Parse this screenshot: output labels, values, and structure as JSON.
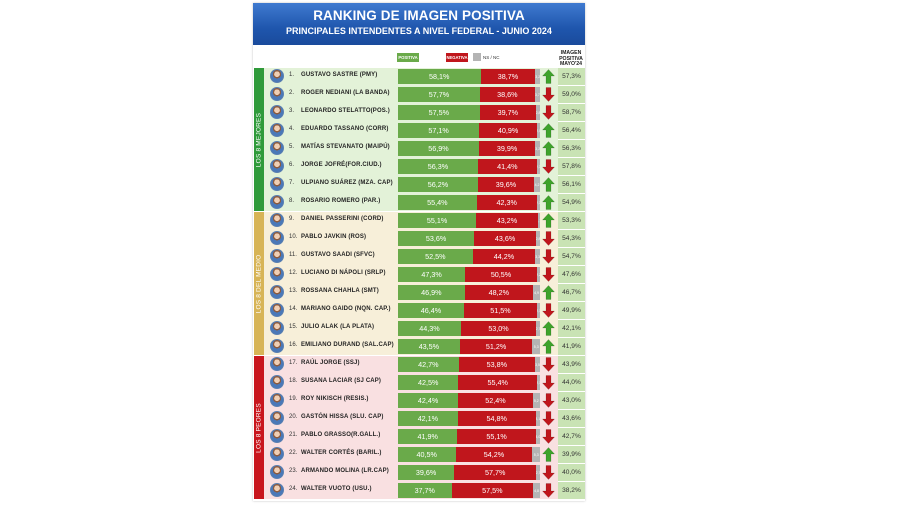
{
  "header": {
    "title": "RANKING DE IMAGEN POSITIVA",
    "subtitle": "PRINCIPALES INTENDENTES A NIVEL FEDERAL - JUNIO 2024"
  },
  "legend": {
    "positive": "POSITIVA",
    "negative": "NEGATIVA",
    "nsnc": "NS / NC"
  },
  "prev_column_header": "IMAGEN POSITIVA MAYO'24",
  "colors": {
    "positive": "#6aaa4a",
    "negative": "#c0161c",
    "nsnc": "#b4b4b4",
    "arrow_up": "#3ea32b",
    "arrow_down": "#c0161c"
  },
  "groups": [
    {
      "label": "LOS 8 MEJORES",
      "color": "#2f9a3a",
      "band": "#e3f2d8",
      "from": 0,
      "to": 7
    },
    {
      "label": "LOS 8 DEL MEDIO",
      "color": "#d7b456",
      "band": "#f7efd9",
      "from": 8,
      "to": 15
    },
    {
      "label": "LOS 8 PEORES",
      "color": "#c8161d",
      "band": "#f9e0e1",
      "from": 16,
      "to": 23
    }
  ],
  "chart_data": {
    "type": "bar",
    "title": "RANKING DE IMAGEN POSITIVA",
    "subtitle": "PRINCIPALES INTENDENTES A NIVEL FEDERAL - JUNIO 2024",
    "stacked": true,
    "series_names": [
      "POSITIVA",
      "NEGATIVA",
      "NS / NC"
    ],
    "rows": [
      {
        "rank": "1.",
        "name": "GUSTAVO SASTRE (PMY)",
        "positive": 58.1,
        "negative": 38.7,
        "nsnc": 3.2,
        "pos_label": "58,1%",
        "neg_label": "38,7%",
        "ns_label": "3,2",
        "trend": "up",
        "prev": "57,3%"
      },
      {
        "rank": "2.",
        "name": "ROGER NEDIANI (LA BANDA)",
        "positive": 57.7,
        "negative": 38.6,
        "nsnc": 3.7,
        "pos_label": "57,7%",
        "neg_label": "38,6%",
        "ns_label": "3,7",
        "trend": "down",
        "prev": "59,0%"
      },
      {
        "rank": "3.",
        "name": "LEONARDO STELATTO(POS.)",
        "positive": 57.5,
        "negative": 39.7,
        "nsnc": 2.8,
        "pos_label": "57,5%",
        "neg_label": "39,7%",
        "ns_label": "2,8",
        "trend": "down",
        "prev": "58,7%"
      },
      {
        "rank": "4.",
        "name": "EDUARDO TASSANO (CORR)",
        "positive": 57.1,
        "negative": 40.9,
        "nsnc": 2.0,
        "pos_label": "57,1%",
        "neg_label": "40,9%",
        "ns_label": "2,0",
        "trend": "up",
        "prev": "56,4%"
      },
      {
        "rank": "5.",
        "name": "MATÍAS STEVANATO (MAIPÚ)",
        "positive": 56.9,
        "negative": 39.9,
        "nsnc": 3.2,
        "pos_label": "56,9%",
        "neg_label": "39,9%",
        "ns_label": "3,2",
        "trend": "up",
        "prev": "56,3%"
      },
      {
        "rank": "6.",
        "name": "JORGE JOFRÉ(FOR.CIUD.)",
        "positive": 56.3,
        "negative": 41.4,
        "nsnc": 2.3,
        "pos_label": "56,3%",
        "neg_label": "41,4%",
        "ns_label": "2,3",
        "trend": "down",
        "prev": "57,8%"
      },
      {
        "rank": "7.",
        "name": "ULPIANO SUÁREZ (MZA. CAP)",
        "positive": 56.2,
        "negative": 39.6,
        "nsnc": 4.2,
        "pos_label": "56,2%",
        "neg_label": "39,6%",
        "ns_label": "4,2",
        "trend": "up",
        "prev": "56,1%"
      },
      {
        "rank": "8.",
        "name": "ROSARIO ROMERO (PAR.)",
        "positive": 55.4,
        "negative": 42.3,
        "nsnc": 2.3,
        "pos_label": "55,4%",
        "neg_label": "42,3%",
        "ns_label": "2,3",
        "trend": "up",
        "prev": "54,9%"
      },
      {
        "rank": "9.",
        "name": "DANIEL PASSERINI (CORD)",
        "positive": 55.1,
        "negative": 43.2,
        "nsnc": 1.7,
        "pos_label": "55,1%",
        "neg_label": "43,2%",
        "ns_label": "1,7",
        "trend": "up",
        "prev": "53,3%"
      },
      {
        "rank": "10.",
        "name": "PABLO JAVKIN (ROS)",
        "positive": 53.6,
        "negative": 43.6,
        "nsnc": 2.8,
        "pos_label": "53,6%",
        "neg_label": "43,6%",
        "ns_label": "2,8",
        "trend": "down",
        "prev": "54,3%"
      },
      {
        "rank": "11.",
        "name": "GUSTAVO SAADI (SFVC)",
        "positive": 52.5,
        "negative": 44.2,
        "nsnc": 3.3,
        "pos_label": "52,5%",
        "neg_label": "44,2%",
        "ns_label": "3,3",
        "trend": "down",
        "prev": "54,7%"
      },
      {
        "rank": "12.",
        "name": "LUCIANO DI NÁPOLI (SRLP)",
        "positive": 47.3,
        "negative": 50.5,
        "nsnc": 2.2,
        "pos_label": "47,3%",
        "neg_label": "50,5%",
        "ns_label": "2,2",
        "trend": "down",
        "prev": "47,6%"
      },
      {
        "rank": "13.",
        "name": "ROSSANA CHAHLA (SMT)",
        "positive": 46.9,
        "negative": 48.2,
        "nsnc": 4.9,
        "pos_label": "46,9%",
        "neg_label": "48,2%",
        "ns_label": "4,9",
        "trend": "up",
        "prev": "46,7%"
      },
      {
        "rank": "14.",
        "name": "MARIANO GAIDO (NQN. CAP.)",
        "positive": 46.4,
        "negative": 51.5,
        "nsnc": 2.1,
        "pos_label": "46,4%",
        "neg_label": "51,5%",
        "ns_label": "2,1",
        "trend": "down",
        "prev": "49,9%"
      },
      {
        "rank": "15.",
        "name": "JULIO ALAK (LA PLATA)",
        "positive": 44.3,
        "negative": 53.0,
        "nsnc": 2.7,
        "pos_label": "44,3%",
        "neg_label": "53,0%",
        "ns_label": "2,7",
        "trend": "up",
        "prev": "42,1%"
      },
      {
        "rank": "16.",
        "name": "EMILIANO DURAND (SAL.CAP)",
        "positive": 43.5,
        "negative": 51.2,
        "nsnc": 5.3,
        "pos_label": "43,5%",
        "neg_label": "51,2%",
        "ns_label": "5,3",
        "trend": "up",
        "prev": "41,9%"
      },
      {
        "rank": "17.",
        "name": "RAÚL JORGE (SSJ)",
        "positive": 42.7,
        "negative": 53.8,
        "nsnc": 3.5,
        "pos_label": "42,7%",
        "neg_label": "53,8%",
        "ns_label": "3,5",
        "trend": "down",
        "prev": "43,9%"
      },
      {
        "rank": "18.",
        "name": "SUSANA LACIAR (SJ CAP)",
        "positive": 42.5,
        "negative": 55.4,
        "nsnc": 2.1,
        "pos_label": "42,5%",
        "neg_label": "55,4%",
        "ns_label": "2,1",
        "trend": "down",
        "prev": "44,0%"
      },
      {
        "rank": "19.",
        "name": "ROY NIKISCH (RESIS.)",
        "positive": 42.4,
        "negative": 52.4,
        "nsnc": 5.2,
        "pos_label": "42,4%",
        "neg_label": "52,4%",
        "ns_label": "5,2",
        "trend": "down",
        "prev": "43,0%"
      },
      {
        "rank": "20.",
        "name": "GASTÓN HISSA (SLU. CAP)",
        "positive": 42.1,
        "negative": 54.8,
        "nsnc": 3.1,
        "pos_label": "42,1%",
        "neg_label": "54,8%",
        "ns_label": "3,1",
        "trend": "down",
        "prev": "43,6%"
      },
      {
        "rank": "21.",
        "name": "PABLO GRASSO(R.GALL.)",
        "positive": 41.9,
        "negative": 55.1,
        "nsnc": 3.0,
        "pos_label": "41,9%",
        "neg_label": "55,1%",
        "ns_label": "3,0",
        "trend": "down",
        "prev": "42,7%"
      },
      {
        "rank": "22.",
        "name": "WALTER CORTÉS (BARIL.)",
        "positive": 40.5,
        "negative": 54.2,
        "nsnc": 5.3,
        "pos_label": "40,5%",
        "neg_label": "54,2%",
        "ns_label": "5,3",
        "trend": "up",
        "prev": "39,9%"
      },
      {
        "rank": "23.",
        "name": "ARMANDO MOLINA (LR.CAP)",
        "positive": 39.6,
        "negative": 57.7,
        "nsnc": 2.7,
        "pos_label": "39,6%",
        "neg_label": "57,7%",
        "ns_label": "2,7",
        "trend": "down",
        "prev": "40,0%"
      },
      {
        "rank": "24.",
        "name": "WALTER VUOTO (USU.)",
        "positive": 37.7,
        "negative": 57.5,
        "nsnc": 4.8,
        "pos_label": "37,7%",
        "neg_label": "57,5%",
        "ns_label": "4,8",
        "trend": "down",
        "prev": "38,2%"
      }
    ]
  }
}
